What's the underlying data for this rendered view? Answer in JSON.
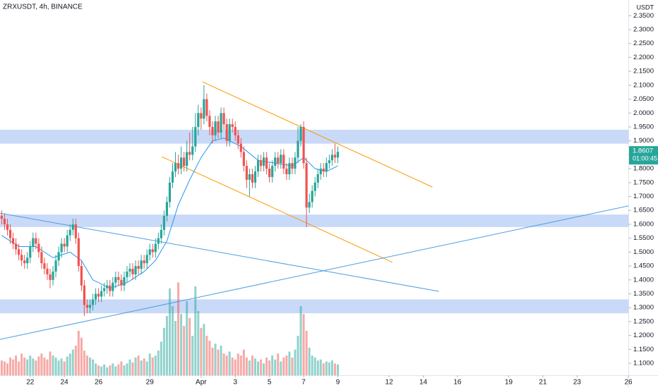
{
  "chart_data": {
    "type": "candlestick",
    "title": "ZRXUSDT, 4h, BINANCE",
    "y_unit": "USDT",
    "up_color": "#26a69a",
    "down_color": "#ef5350",
    "grid": false,
    "xlim": [
      1.4,
      222
    ],
    "ylim": [
      1.057,
      2.4065
    ],
    "volume_lim": [
      0,
      100
    ],
    "xticks": [
      {
        "value": 12,
        "label": "22"
      },
      {
        "value": 24,
        "label": "24"
      },
      {
        "value": 36,
        "label": "26"
      },
      {
        "value": 54,
        "label": "29"
      },
      {
        "value": 72,
        "label": "Apr"
      },
      {
        "value": 84,
        "label": "3"
      },
      {
        "value": 96,
        "label": "5"
      },
      {
        "value": 108,
        "label": "7"
      },
      {
        "value": 120,
        "label": "9"
      },
      {
        "value": 138,
        "label": "12"
      },
      {
        "value": 150,
        "label": "14"
      },
      {
        "value": 162,
        "label": "16"
      },
      {
        "value": 180,
        "label": "19"
      },
      {
        "value": 192,
        "label": "21"
      },
      {
        "value": 204,
        "label": "23"
      },
      {
        "value": 222,
        "label": "26"
      }
    ],
    "yticks": [
      {
        "value": 1.1,
        "label": "1.1000"
      },
      {
        "value": 1.15,
        "label": "1.1500"
      },
      {
        "value": 1.2,
        "label": "1.2000"
      },
      {
        "value": 1.25,
        "label": "1.2500"
      },
      {
        "value": 1.3,
        "label": "1.3000"
      },
      {
        "value": 1.35,
        "label": "1.3500"
      },
      {
        "value": 1.4,
        "label": "1.4000"
      },
      {
        "value": 1.45,
        "label": "1.4500"
      },
      {
        "value": 1.5,
        "label": "1.5000"
      },
      {
        "value": 1.55,
        "label": "1.5500"
      },
      {
        "value": 1.6,
        "label": "1.6000"
      },
      {
        "value": 1.65,
        "label": "1.6500"
      },
      {
        "value": 1.7,
        "label": "1.7000"
      },
      {
        "value": 1.75,
        "label": "1.7500"
      },
      {
        "value": 1.8,
        "label": "1.8000"
      },
      {
        "value": 1.85,
        "label": "1.8500"
      },
      {
        "value": 1.9,
        "label": "1.9000"
      },
      {
        "value": 1.95,
        "label": "1.9500"
      },
      {
        "value": 2.0,
        "label": "2.0000"
      },
      {
        "value": 2.05,
        "label": "2.0500"
      },
      {
        "value": 2.1,
        "label": "2.1000"
      },
      {
        "value": 2.15,
        "label": "2.1500"
      },
      {
        "value": 2.2,
        "label": "2.2000"
      },
      {
        "value": 2.25,
        "label": "2.2500"
      },
      {
        "value": 2.3,
        "label": "2.3000"
      },
      {
        "value": 2.35,
        "label": "2.3500"
      }
    ],
    "x": [
      2,
      3,
      4,
      5,
      6,
      7,
      8,
      9,
      10,
      11,
      12,
      13,
      14,
      15,
      16,
      17,
      18,
      19,
      20,
      21,
      22,
      23,
      24,
      25,
      26,
      27,
      28,
      29,
      30,
      31,
      32,
      33,
      34,
      35,
      36,
      37,
      38,
      39,
      40,
      41,
      42,
      43,
      44,
      45,
      46,
      47,
      48,
      49,
      50,
      51,
      52,
      53,
      54,
      55,
      56,
      57,
      58,
      59,
      60,
      61,
      62,
      63,
      64,
      65,
      66,
      67,
      68,
      69,
      70,
      71,
      72,
      73,
      74,
      75,
      76,
      77,
      78,
      79,
      80,
      81,
      82,
      83,
      84,
      85,
      86,
      87,
      88,
      89,
      90,
      91,
      92,
      93,
      94,
      95,
      96,
      97,
      98,
      99,
      100,
      101,
      102,
      103,
      104,
      105,
      106,
      107,
      108,
      109,
      110,
      111,
      112,
      113,
      114,
      115,
      116,
      117,
      118,
      119,
      120
    ],
    "open": [
      1.63,
      1.62,
      1.6,
      1.58,
      1.55,
      1.53,
      1.51,
      1.49,
      1.47,
      1.46,
      1.48,
      1.52,
      1.55,
      1.53,
      1.5,
      1.46,
      1.44,
      1.42,
      1.4,
      1.43,
      1.47,
      1.5,
      1.53,
      1.52,
      1.56,
      1.58,
      1.6,
      1.55,
      1.45,
      1.38,
      1.31,
      1.3,
      1.31,
      1.33,
      1.35,
      1.34,
      1.36,
      1.37,
      1.38,
      1.36,
      1.39,
      1.41,
      1.4,
      1.38,
      1.41,
      1.43,
      1.44,
      1.42,
      1.45,
      1.44,
      1.47,
      1.46,
      1.49,
      1.51,
      1.5,
      1.53,
      1.55,
      1.58,
      1.63,
      1.68,
      1.75,
      1.79,
      1.82,
      1.8,
      1.84,
      1.81,
      1.86,
      1.85,
      1.88,
      1.95,
      2.0,
      1.98,
      2.05,
      1.99,
      1.95,
      1.92,
      1.97,
      1.93,
      2.0,
      1.96,
      1.9,
      1.96,
      1.95,
      1.92,
      1.89,
      1.86,
      1.81,
      1.76,
      1.78,
      1.75,
      1.79,
      1.83,
      1.81,
      1.84,
      1.8,
      1.77,
      1.81,
      1.84,
      1.82,
      1.85,
      1.8,
      1.78,
      1.82,
      1.8,
      1.84,
      1.9,
      1.95,
      1.82,
      1.66,
      1.68,
      1.72,
      1.75,
      1.78,
      1.8,
      1.79,
      1.82,
      1.83,
      1.85,
      1.84
    ],
    "high": [
      1.65,
      1.64,
      1.62,
      1.6,
      1.57,
      1.55,
      1.53,
      1.51,
      1.49,
      1.5,
      1.54,
      1.57,
      1.57,
      1.55,
      1.52,
      1.48,
      1.46,
      1.44,
      1.45,
      1.49,
      1.52,
      1.55,
      1.55,
      1.58,
      1.6,
      1.62,
      1.62,
      1.57,
      1.47,
      1.4,
      1.33,
      1.33,
      1.35,
      1.37,
      1.37,
      1.38,
      1.39,
      1.4,
      1.4,
      1.41,
      1.43,
      1.43,
      1.42,
      1.43,
      1.45,
      1.46,
      1.46,
      1.47,
      1.47,
      1.49,
      1.49,
      1.51,
      1.53,
      1.53,
      1.55,
      1.57,
      1.6,
      1.65,
      1.7,
      1.77,
      1.82,
      1.86,
      1.85,
      1.88,
      1.86,
      1.9,
      1.93,
      1.95,
      2.0,
      2.03,
      2.02,
      2.1,
      2.07,
      2.01,
      1.97,
      1.99,
      1.99,
      2.02,
      2.02,
      1.98,
      1.98,
      1.98,
      1.97,
      1.94,
      1.91,
      1.88,
      1.83,
      1.8,
      1.8,
      1.81,
      1.85,
      1.85,
      1.86,
      1.86,
      1.82,
      1.83,
      1.86,
      1.86,
      1.87,
      1.87,
      1.82,
      1.84,
      1.84,
      1.86,
      1.95,
      1.96,
      1.97,
      1.84,
      1.71,
      1.74,
      1.77,
      1.8,
      1.82,
      1.82,
      1.84,
      1.85,
      1.87,
      1.89,
      1.88
    ],
    "low": [
      1.6,
      1.58,
      1.56,
      1.53,
      1.51,
      1.49,
      1.47,
      1.45,
      1.44,
      1.44,
      1.46,
      1.5,
      1.51,
      1.48,
      1.44,
      1.42,
      1.4,
      1.37,
      1.38,
      1.41,
      1.45,
      1.48,
      1.5,
      1.5,
      1.54,
      1.56,
      1.53,
      1.43,
      1.36,
      1.27,
      1.28,
      1.28,
      1.29,
      1.31,
      1.32,
      1.32,
      1.34,
      1.35,
      1.34,
      1.34,
      1.37,
      1.38,
      1.36,
      1.36,
      1.39,
      1.41,
      1.4,
      1.4,
      1.42,
      1.42,
      1.44,
      1.44,
      1.47,
      1.48,
      1.48,
      1.51,
      1.53,
      1.56,
      1.61,
      1.66,
      1.73,
      1.77,
      1.78,
      1.78,
      1.79,
      1.79,
      1.83,
      1.83,
      1.86,
      1.92,
      1.94,
      1.96,
      1.97,
      1.92,
      1.89,
      1.9,
      1.91,
      1.91,
      1.94,
      1.88,
      1.88,
      1.93,
      1.9,
      1.87,
      1.84,
      1.79,
      1.73,
      1.7,
      1.73,
      1.73,
      1.77,
      1.79,
      1.79,
      1.78,
      1.75,
      1.75,
      1.79,
      1.8,
      1.8,
      1.78,
      1.76,
      1.76,
      1.78,
      1.78,
      1.82,
      1.88,
      1.8,
      1.59,
      1.64,
      1.66,
      1.7,
      1.73,
      1.76,
      1.77,
      1.77,
      1.8,
      1.81,
      1.82,
      1.82
    ],
    "close": [
      1.62,
      1.6,
      1.58,
      1.55,
      1.53,
      1.51,
      1.49,
      1.47,
      1.46,
      1.48,
      1.52,
      1.55,
      1.53,
      1.5,
      1.46,
      1.44,
      1.42,
      1.4,
      1.43,
      1.47,
      1.5,
      1.53,
      1.52,
      1.56,
      1.58,
      1.6,
      1.55,
      1.45,
      1.38,
      1.31,
      1.3,
      1.31,
      1.33,
      1.35,
      1.34,
      1.36,
      1.37,
      1.38,
      1.36,
      1.39,
      1.41,
      1.4,
      1.38,
      1.41,
      1.43,
      1.44,
      1.42,
      1.45,
      1.44,
      1.47,
      1.46,
      1.49,
      1.51,
      1.5,
      1.53,
      1.55,
      1.58,
      1.63,
      1.68,
      1.75,
      1.79,
      1.82,
      1.8,
      1.84,
      1.81,
      1.86,
      1.85,
      1.88,
      1.95,
      2.0,
      1.98,
      2.05,
      1.99,
      1.95,
      1.92,
      1.97,
      1.93,
      2.0,
      1.96,
      1.9,
      1.96,
      1.95,
      1.92,
      1.89,
      1.86,
      1.81,
      1.76,
      1.78,
      1.75,
      1.79,
      1.83,
      1.81,
      1.84,
      1.8,
      1.77,
      1.81,
      1.84,
      1.82,
      1.85,
      1.8,
      1.78,
      1.82,
      1.8,
      1.84,
      1.9,
      1.95,
      1.82,
      1.66,
      1.68,
      1.72,
      1.75,
      1.78,
      1.8,
      1.79,
      1.82,
      1.83,
      1.85,
      1.84,
      1.8607
    ],
    "volume": [
      15,
      14,
      12,
      18,
      16,
      20,
      14,
      22,
      18,
      16,
      20,
      17,
      15,
      19,
      22,
      18,
      16,
      24,
      20,
      18,
      15,
      17,
      14,
      19,
      22,
      26,
      30,
      45,
      38,
      25,
      20,
      18,
      16,
      12,
      10,
      9,
      11,
      8,
      10,
      12,
      9,
      11,
      14,
      10,
      12,
      16,
      13,
      18,
      20,
      15,
      17,
      14,
      22,
      18,
      20,
      25,
      34,
      48,
      60,
      88,
      70,
      55,
      94,
      62,
      50,
      75,
      58,
      40,
      90,
      65,
      48,
      52,
      40,
      35,
      28,
      32,
      26,
      30,
      22,
      20,
      24,
      18,
      16,
      22,
      20,
      26,
      18,
      15,
      20,
      17,
      14,
      16,
      12,
      18,
      15,
      20,
      16,
      22,
      14,
      18,
      20,
      24,
      18,
      26,
      40,
      70,
      62,
      45,
      28,
      20,
      18,
      15,
      16,
      12,
      14,
      13,
      15,
      12,
      11
    ],
    "ma": {
      "color": "#2196f3",
      "x": [
        2,
        8,
        14,
        20,
        26,
        30,
        34,
        40,
        46,
        52,
        56,
        60,
        64,
        68,
        72,
        76,
        80,
        86,
        92,
        98,
        104,
        108,
        112,
        116,
        120
      ],
      "values": [
        1.56,
        1.52,
        1.52,
        1.48,
        1.5,
        1.47,
        1.4,
        1.37,
        1.39,
        1.43,
        1.47,
        1.54,
        1.67,
        1.76,
        1.84,
        1.9,
        1.91,
        1.88,
        1.83,
        1.82,
        1.81,
        1.84,
        1.8,
        1.79,
        1.81
      ]
    },
    "zone_color": "#c9d9f8",
    "zones": [
      [
        1.89,
        1.94
      ],
      [
        1.59,
        1.635
      ],
      [
        1.28,
        1.33
      ]
    ],
    "trendlines": [
      {
        "color": "#ff9800",
        "x": [
          72.5,
          153.2
        ],
        "values": [
          2.112,
          1.734
        ]
      },
      {
        "color": "#ff9800",
        "x": [
          58.2,
          139.2
        ],
        "values": [
          1.843,
          1.463
        ]
      },
      {
        "color": "#4a9fe0",
        "x": [
          1.4,
          155.5
        ],
        "values": [
          1.64,
          1.359
        ]
      },
      {
        "color": "#4a9fe0",
        "x": [
          1.4,
          222
        ],
        "values": [
          1.186,
          1.666
        ]
      }
    ],
    "last_price": 1.8607,
    "countdown": "01:00:45"
  }
}
